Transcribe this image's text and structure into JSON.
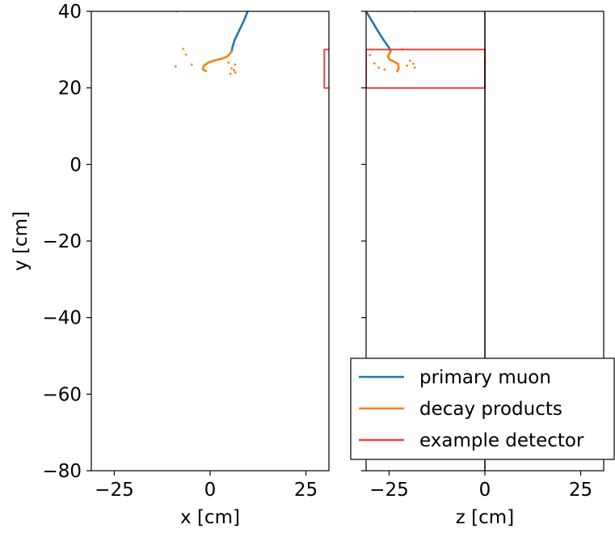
{
  "chart_data": [
    {
      "type": "line",
      "panel": "left",
      "xlabel": "x [cm]",
      "ylabel": "y [cm]",
      "xlim": [
        -31,
        31
      ],
      "ylim": [
        -80,
        40
      ],
      "xticks": [
        -25,
        0,
        25
      ],
      "yticks": [
        40,
        20,
        0,
        -20,
        -40,
        -60,
        -80
      ],
      "xtick_labels": [
        "−25",
        "0",
        "25"
      ],
      "ytick_labels": [
        "40",
        "20",
        "0",
        "−20",
        "−40",
        "−60",
        "−80"
      ],
      "grid": false,
      "series": [
        {
          "name": "primary muon",
          "color": "#1f77b4",
          "style": "line",
          "points": [
            [
              9.8,
              40
            ],
            [
              8.8,
              37.5
            ],
            [
              7.6,
              35
            ],
            [
              6.4,
              32.5
            ],
            [
              5.8,
              30.5
            ],
            [
              5.6,
              29.5
            ]
          ]
        },
        {
          "name": "decay products",
          "color": "#ff7f0e",
          "style": "line",
          "points": [
            [
              5.6,
              29.5
            ],
            [
              4.5,
              28.2
            ],
            [
              3.0,
              27.6
            ],
            [
              1.2,
              27.2
            ],
            [
              -0.5,
              26.6
            ],
            [
              -1.6,
              25.8
            ],
            [
              -1.9,
              24.8
            ],
            [
              -1.1,
              24.4
            ]
          ]
        },
        {
          "name": "decay products",
          "color": "#ff7f0e",
          "style": "scatter",
          "points": [
            [
              -7,
              30.2
            ],
            [
              -6.3,
              28.7
            ],
            [
              -4.8,
              26.1
            ],
            [
              -9,
              25.6
            ],
            [
              4.8,
              26.6
            ],
            [
              6.5,
              26.1
            ],
            [
              5.6,
              25.1
            ],
            [
              6.2,
              24.6
            ],
            [
              5.3,
              23.7
            ],
            [
              6.6,
              24.0
            ],
            [
              -8.7,
              40
            ]
          ]
        },
        {
          "name": "example detector",
          "color": "#ef4040",
          "style": "line",
          "points": [
            [
              31,
              30
            ],
            [
              29.8,
              30
            ],
            [
              29.8,
              20
            ],
            [
              31,
              20
            ]
          ]
        }
      ]
    },
    {
      "type": "line",
      "panel": "right",
      "xlabel": "z [cm]",
      "xlim": [
        -31,
        31
      ],
      "ylim": [
        -80,
        40
      ],
      "xticks": [
        -25,
        0,
        25
      ],
      "xtick_labels": [
        "−25",
        "0",
        "25"
      ],
      "grid": false,
      "legend": {
        "position": "lower-right",
        "entries": [
          {
            "label": "primary muon",
            "color": "#1f77b4"
          },
          {
            "label": "decay products",
            "color": "#ff7f0e"
          },
          {
            "label": "example detector",
            "color": "#ef4040"
          }
        ]
      },
      "series": [
        {
          "name": "primary muon",
          "color": "#1f77b4",
          "style": "line",
          "points": [
            [
              -31,
              40
            ],
            [
              -29.5,
              37.5
            ],
            [
              -28,
              35
            ],
            [
              -26.3,
              32.3
            ],
            [
              -25,
              30.5
            ],
            [
              -24.6,
              29.5
            ]
          ]
        },
        {
          "name": "decay products",
          "color": "#ff7f0e",
          "style": "line",
          "points": [
            [
              -24.6,
              29.5
            ],
            [
              -25.3,
              28.3
            ],
            [
              -24.9,
              27.4
            ],
            [
              -23.6,
              26.8
            ],
            [
              -22.6,
              26.2
            ],
            [
              -22.5,
              25
            ],
            [
              -22.9,
              24.3
            ]
          ]
        },
        {
          "name": "decay products",
          "color": "#ff7f0e",
          "style": "scatter",
          "points": [
            [
              -30,
              28.6
            ],
            [
              -28.8,
              26.4
            ],
            [
              -27.7,
              25.3
            ],
            [
              -26.2,
              24.8
            ],
            [
              -19.5,
              27.1
            ],
            [
              -18.7,
              26.3
            ],
            [
              -18.3,
              25.3
            ],
            [
              -20.3,
              25.8
            ],
            [
              -21.5,
              30.1
            ],
            [
              -18.1,
              40
            ]
          ]
        },
        {
          "name": "example detector",
          "color": "#ef4040",
          "style": "line",
          "points": [
            [
              -31,
              20
            ],
            [
              0,
              20
            ],
            [
              0,
              30
            ],
            [
              -31,
              30
            ],
            [
              -31,
              20
            ]
          ]
        },
        {
          "name": "boundary",
          "color": "#000000",
          "style": "line",
          "points": [
            [
              0,
              40
            ],
            [
              0,
              -80
            ]
          ]
        }
      ]
    }
  ]
}
